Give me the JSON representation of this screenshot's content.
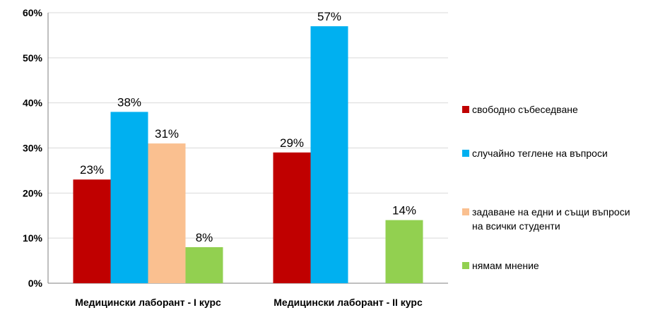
{
  "chart_data": {
    "type": "bar",
    "categories": [
      "Медицински лаборант - I курс",
      "Медицински лаборант - II курс"
    ],
    "series": [
      {
        "name": "свободно събеседване",
        "color": "#c00000",
        "values": [
          23,
          29
        ]
      },
      {
        "name": "случайно теглене на въпроси",
        "color": "#00b0f0",
        "values": [
          38,
          57
        ]
      },
      {
        "name": "задаване на едни и същи въпроси на всички студенти",
        "color": "#fac090",
        "values": [
          31,
          null
        ]
      },
      {
        "name": "нямам мнение",
        "color": "#92d050",
        "values": [
          8,
          14
        ]
      }
    ],
    "yticks": [
      "0%",
      "10%",
      "20%",
      "30%",
      "40%",
      "50%",
      "60%"
    ],
    "ylim": [
      0,
      60
    ],
    "value_suffix": "%",
    "grid": true,
    "legend_position": "right",
    "legend_lines": [
      [
        "свободно събеседване"
      ],
      [
        "случайно теглене на въпроси"
      ],
      [
        "задаване на едни и същи въпроси",
        "на всички студенти"
      ],
      [
        "нямам мнение"
      ]
    ]
  }
}
